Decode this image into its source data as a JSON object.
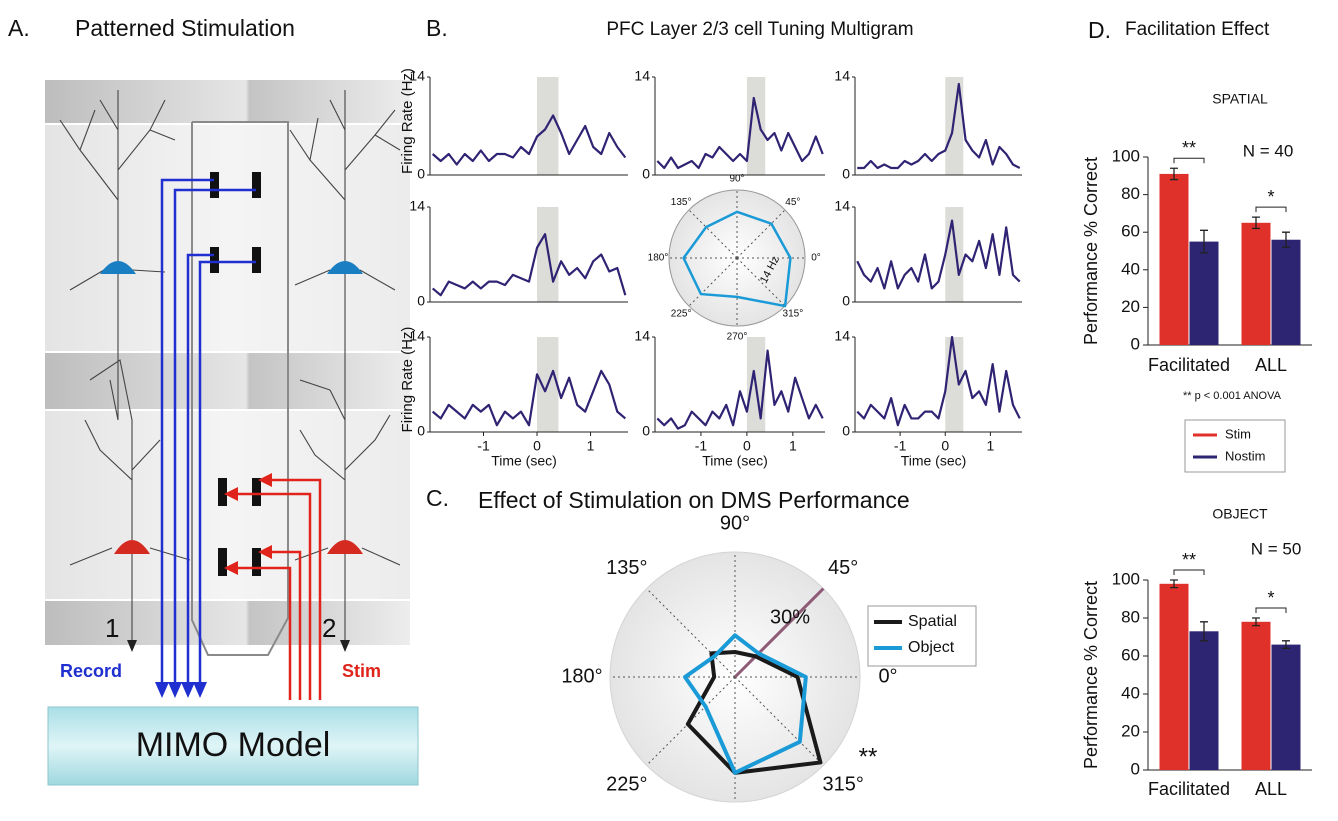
{
  "figure_a": {
    "letter": "A.",
    "title": "Patterned Stimulation",
    "neuron_labels": [
      "1",
      "2"
    ],
    "record_label": "Record",
    "stim_label": "Stim",
    "model_label": "MIMO Model"
  },
  "chart_data": [
    {
      "type": "multigram",
      "panel": "B.",
      "title": "PFC Layer 2/3 cell Tuning Multigram",
      "y_label": "Firing Rate (Hz)",
      "x_label": "Time (sec)",
      "x": [
        -1.95,
        -1.8,
        -1.65,
        -1.5,
        -1.35,
        -1.2,
        -1.05,
        -0.9,
        -0.75,
        -0.6,
        -0.45,
        -0.3,
        -0.15,
        0,
        0.15,
        0.3,
        0.45,
        0.6,
        0.75,
        0.9,
        1.05,
        1.2,
        1.35,
        1.5,
        1.65
      ],
      "xlim": [
        -2,
        1.7
      ],
      "xticks": [
        -1,
        0,
        1
      ],
      "ylim": [
        0,
        14
      ],
      "yticks": [
        0,
        14
      ],
      "shade": [
        0,
        0.4
      ],
      "color": "#2e2473",
      "series": [
        {
          "values": [
            3,
            2,
            3,
            1.5,
            3,
            2,
            3.5,
            2,
            3,
            3,
            2.5,
            4,
            3,
            5.5,
            6.5,
            8.5,
            6,
            3,
            5,
            7,
            4,
            3,
            6,
            4,
            2.5
          ]
        },
        {
          "values": [
            2,
            1,
            2.5,
            1,
            1.5,
            2,
            1,
            3,
            2.5,
            4,
            3,
            2,
            3,
            2,
            11,
            6.5,
            5,
            6,
            3.5,
            6,
            4,
            2,
            3,
            5.5,
            3
          ]
        },
        {
          "values": [
            1,
            1,
            2,
            1,
            1.5,
            1,
            1,
            2,
            1.5,
            2,
            3,
            2,
            3,
            3.5,
            6,
            13,
            5,
            3.5,
            2.5,
            5,
            1.5,
            4,
            3,
            1.5,
            1
          ]
        },
        {
          "values": [
            2,
            1,
            3,
            2.5,
            2,
            3,
            2,
            3,
            3,
            2.5,
            4,
            3.5,
            3,
            8,
            10,
            3,
            6,
            4,
            5,
            3.5,
            6,
            7,
            4.5,
            5,
            1
          ]
        },
        {
          "values": [
            6,
            4,
            3,
            5,
            2,
            6,
            2,
            4,
            5,
            3,
            7,
            2,
            3,
            7,
            12,
            4,
            7,
            6,
            9,
            5,
            10,
            4,
            11,
            4,
            3
          ]
        },
        {
          "values": [
            3,
            2,
            4,
            3,
            2,
            4,
            3,
            4,
            1,
            3,
            2,
            3,
            1,
            8.5,
            6,
            9,
            5,
            8,
            4,
            3,
            6,
            9,
            7,
            3,
            2
          ]
        },
        {
          "values": [
            2,
            1,
            2,
            0.5,
            1,
            3,
            2,
            1,
            3,
            2,
            4,
            1,
            6,
            3,
            9,
            2,
            12,
            4,
            6,
            3,
            8,
            5,
            2,
            4,
            2
          ]
        },
        {
          "values": [
            3,
            2,
            4,
            3,
            2,
            5,
            1,
            4,
            2,
            2,
            3,
            3,
            2,
            6,
            14,
            7,
            9,
            5,
            6,
            4,
            10,
            3,
            9,
            4,
            2
          ]
        }
      ]
    },
    {
      "type": "radar",
      "angles": [
        {
          "value": 0,
          "label": "0°"
        },
        {
          "value": 45,
          "label": "45°"
        },
        {
          "value": 90,
          "label": "90°"
        },
        {
          "value": 135,
          "label": "135°"
        },
        {
          "value": 180,
          "label": "180°"
        },
        {
          "value": 225,
          "label": "225°"
        },
        {
          "value": 270,
          "label": "270°"
        },
        {
          "value": 315,
          "label": "315°"
        }
      ],
      "rlim": [
        0,
        14
      ],
      "rticks": [
        {
          "value": 14,
          "label": "14 Hz"
        }
      ],
      "color": "#1a9ad6",
      "values": [
        11,
        10,
        9.5,
        9,
        11,
        10.5,
        8,
        14
      ]
    },
    {
      "type": "radar",
      "panel": "C.",
      "title": "Effect of Stimulation on DMS Performance",
      "angles": [
        {
          "value": 0,
          "label": "0°"
        },
        {
          "value": 45,
          "label": "45°"
        },
        {
          "value": 90,
          "label": "90°"
        },
        {
          "value": 135,
          "label": "135°"
        },
        {
          "value": 180,
          "label": "180°"
        },
        {
          "value": 225,
          "label": "225°"
        },
        {
          "value": 270,
          "label": "270°"
        },
        {
          "value": 315,
          "label": "315°"
        }
      ],
      "rlim": [
        0,
        30
      ],
      "rticks": [
        {
          "value": 30,
          "label": "30%"
        }
      ],
      "annotation": "**",
      "series": [
        {
          "name": "Spatial",
          "color": "#1a1a1a",
          "values": [
            15,
            7,
            6,
            8,
            5,
            16,
            23,
            29
          ]
        },
        {
          "name": "Object",
          "color": "#1a9ad6",
          "values": [
            17,
            8,
            10,
            7,
            12,
            10,
            23,
            22
          ]
        }
      ]
    },
    {
      "type": "bar",
      "panel": "D.",
      "panel_title": "Facilitation Effect",
      "title": "SPATIAL",
      "y_label": "Performance % Correct",
      "n_label": "N = 40",
      "note": "** p < 0.001 ANOVA",
      "significance": [
        "**",
        "*"
      ],
      "categories": [
        "Facilitated",
        "ALL"
      ],
      "ylim": [
        0,
        100
      ],
      "yticks": [
        0,
        20,
        40,
        60,
        80,
        100
      ],
      "series": [
        {
          "name": "Stim",
          "color": "#e0302a",
          "values": [
            91,
            65
          ],
          "errors": [
            3,
            3
          ]
        },
        {
          "name": "Nostim",
          "color": "#2d2472",
          "values": [
            55,
            56
          ],
          "errors": [
            6,
            4
          ]
        }
      ]
    },
    {
      "type": "bar",
      "title": "OBJECT",
      "y_label": "Performance % Correct",
      "n_label": "N = 50",
      "significance": [
        "**",
        "*"
      ],
      "categories": [
        "Facilitated",
        "ALL"
      ],
      "ylim": [
        0,
        100
      ],
      "yticks": [
        0,
        20,
        40,
        60,
        80,
        100
      ],
      "series": [
        {
          "color": "#e0302a",
          "values": [
            98,
            78
          ],
          "errors": [
            2,
            2
          ]
        },
        {
          "color": "#2d2472",
          "values": [
            73,
            66
          ],
          "errors": [
            5,
            2
          ]
        }
      ]
    }
  ]
}
